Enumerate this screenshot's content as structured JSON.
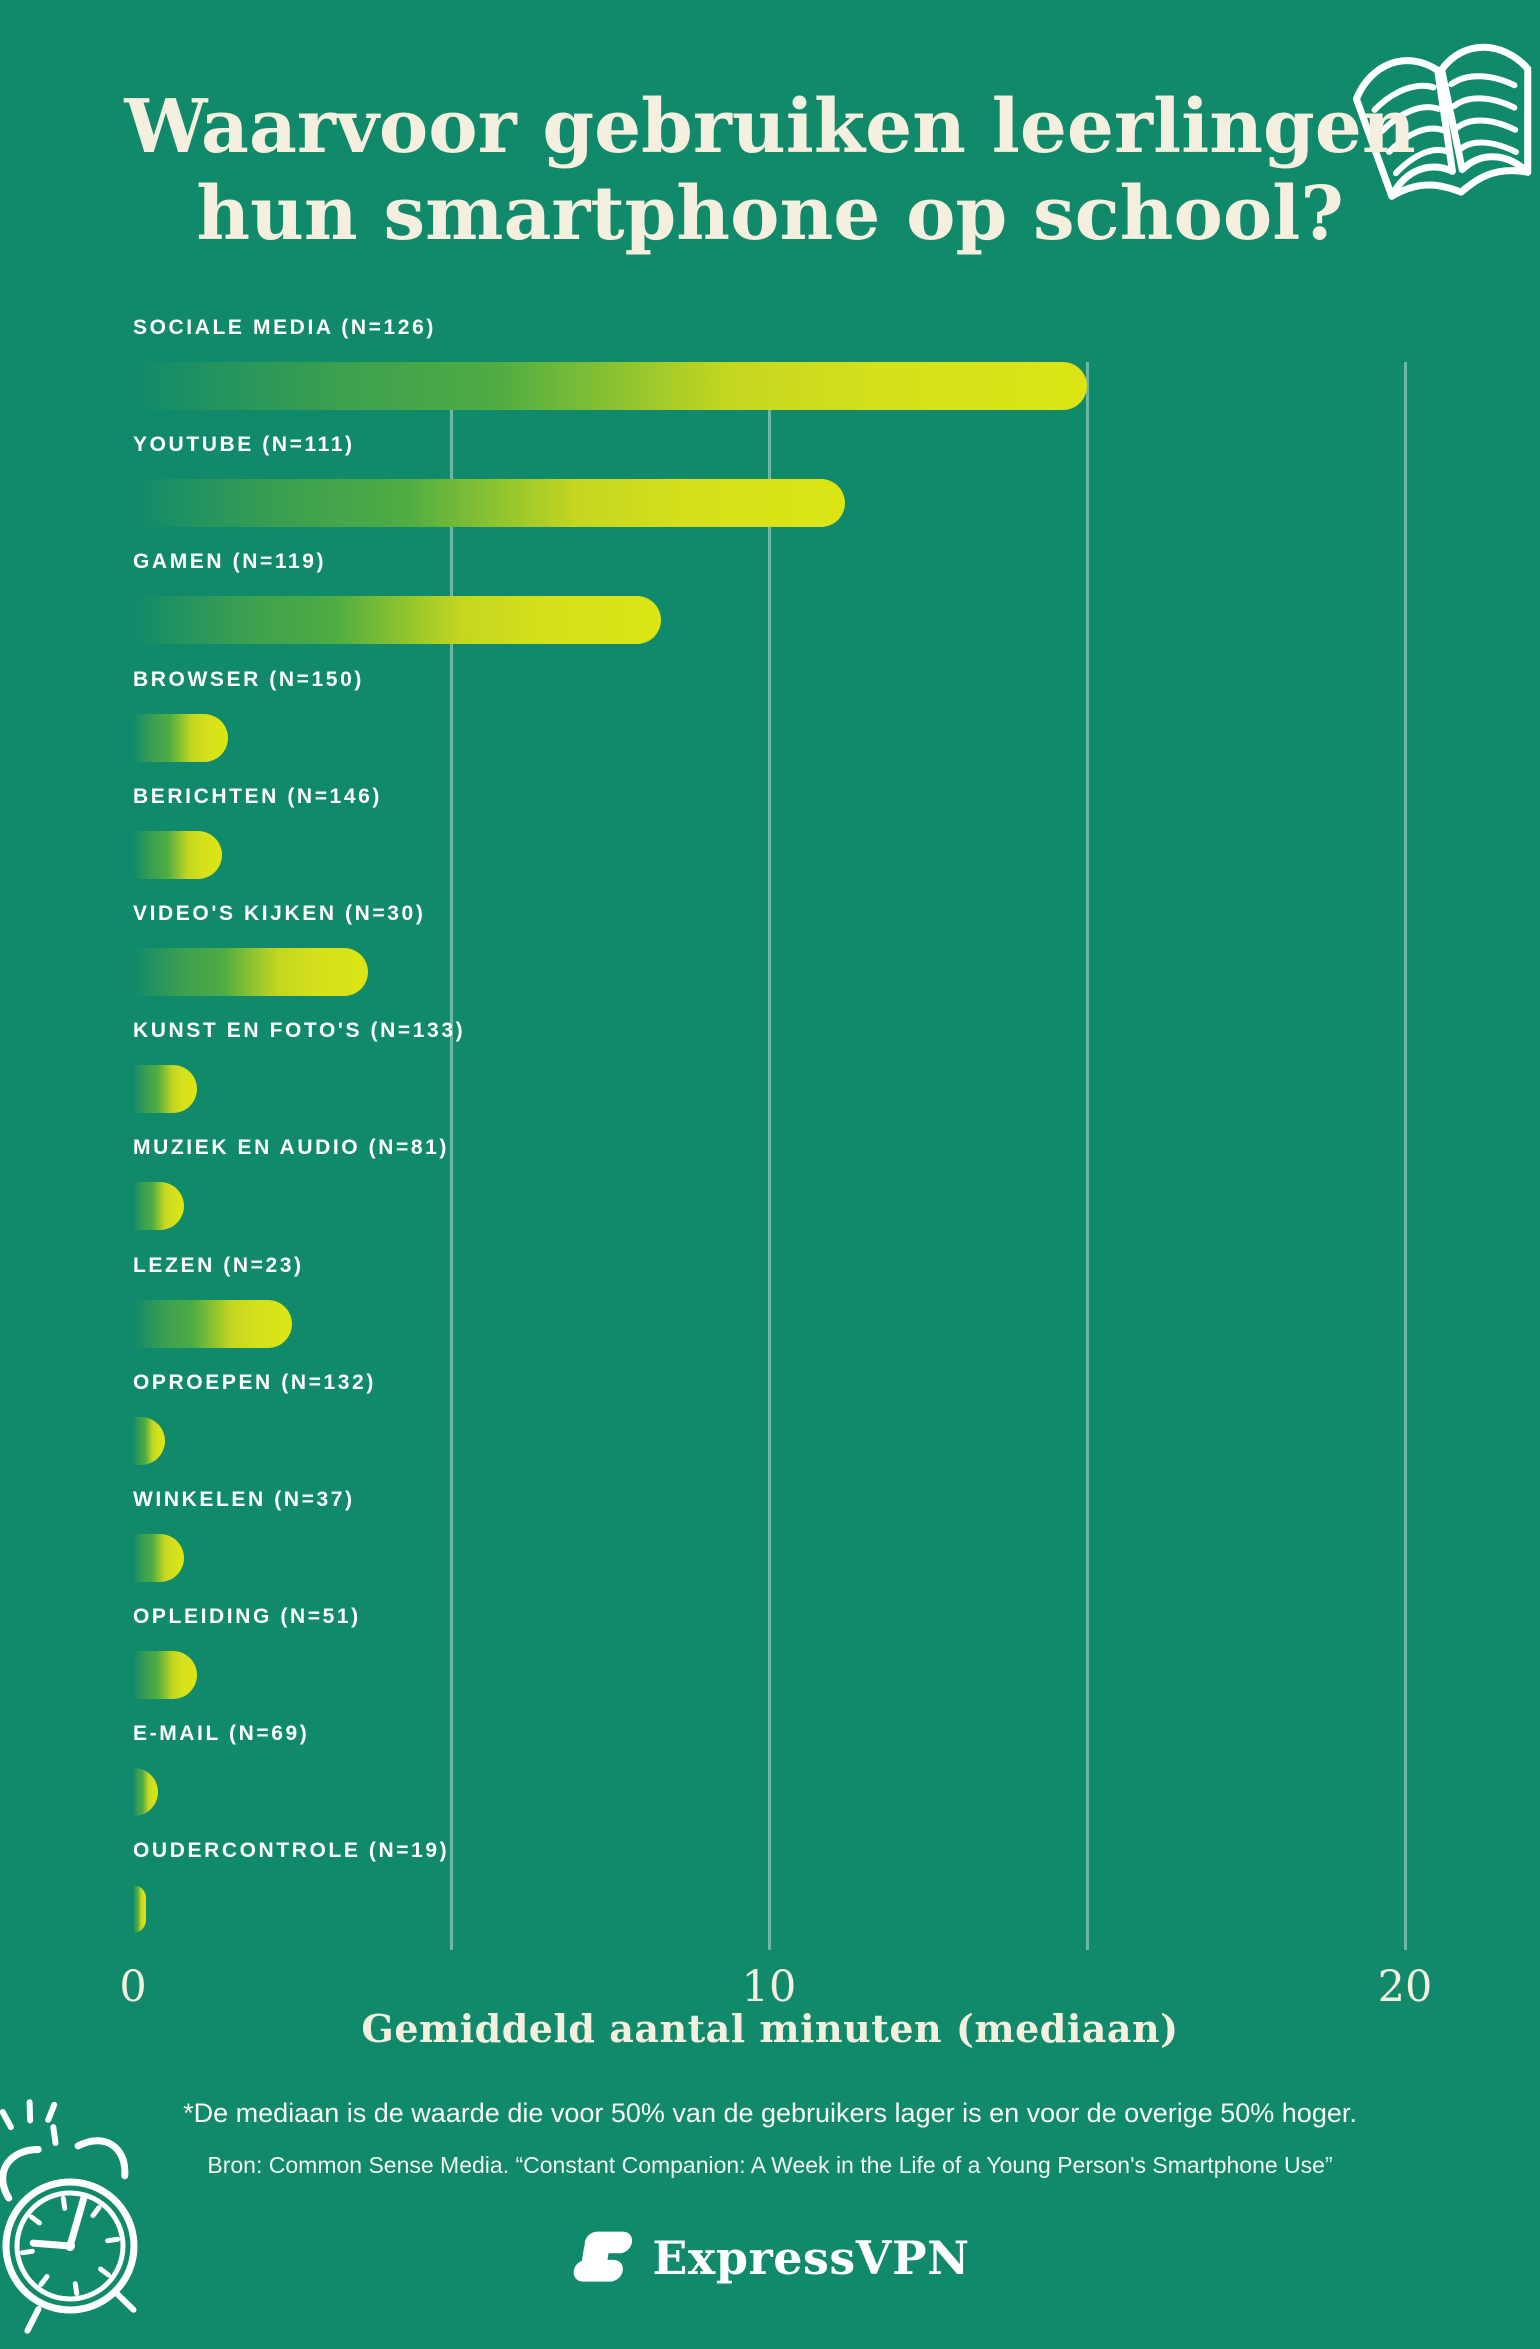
{
  "page": {
    "title_lines": [
      "Waarvoor gebruiken leerlingen",
      "hun smartphone op school?"
    ],
    "background_color": "#118A6B",
    "bar_yellow": "#DCE513",
    "bar_gradient_mid": "#4EAC43",
    "cream_text_color": "#F4EFDF",
    "label_text_color": "#FFFFFF",
    "gridline_color": "rgba(240,246,242,0.42)"
  },
  "chart_data": {
    "type": "bar",
    "orientation": "horizontal",
    "title": "Waarvoor gebruiken leerlingen hun smartphone op school?",
    "xlabel": "Gemiddeld aantal minuten (mediaan)",
    "xlim": [
      0,
      20
    ],
    "xticks": [
      0,
      10,
      20
    ],
    "gridlines_at": [
      5,
      10,
      15,
      20
    ],
    "grid": "vertical-only",
    "legend": "none",
    "unit": "minuten (mediaan)",
    "categories": [
      "SOCIALE MEDIA (N=126)",
      "YOUTUBE (N=111)",
      "GAMEN (N=119)",
      "BROWSER (N=150)",
      "BERICHTEN (N=146)",
      "VIDEO'S KIJKEN (N=30)",
      "KUNST EN FOTO'S (N=133)",
      "MUZIEK EN AUDIO (N=81)",
      "LEZEN (N=23)",
      "OPROEPEN (N=132)",
      "WINKELEN (N=37)",
      "OPLEIDING (N=51)",
      "E-MAIL (N=69)",
      "OUDERCONTROLE (N=19)"
    ],
    "sample_sizes": [
      126,
      111,
      119,
      150,
      146,
      30,
      133,
      81,
      23,
      132,
      37,
      51,
      69,
      19
    ],
    "values": [
      15,
      11.2,
      8.3,
      1.5,
      1.4,
      3.7,
      1.0,
      0.8,
      2.5,
      0.5,
      0.8,
      1.0,
      0.4,
      0.2
    ]
  },
  "footer": {
    "note": "*De mediaan is de waarde die voor 50% van de gebruikers lager is en voor de overige 50% hoger.",
    "source": "Bron: Common Sense Media. “Constant Companion: A Week in the Life of a Young Person's Smartphone Use”",
    "brand": "ExpressVPN"
  }
}
